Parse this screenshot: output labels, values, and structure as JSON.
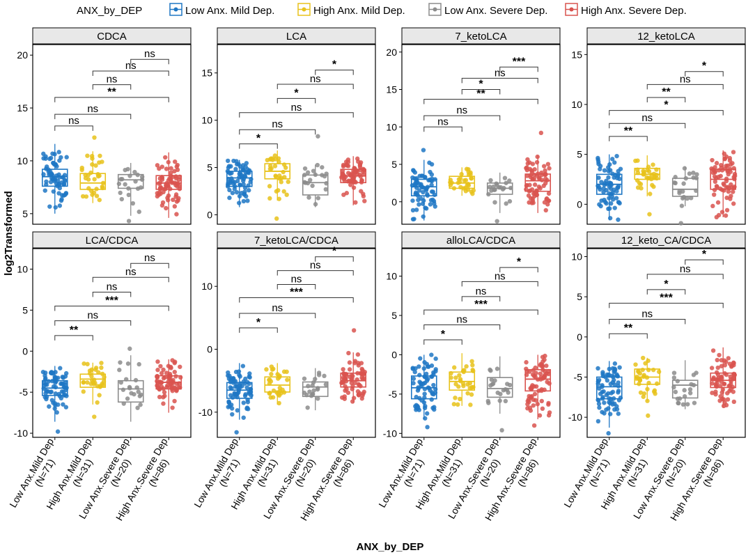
{
  "legend": {
    "title": "ANX_by_DEP",
    "entries": [
      {
        "label": "Low Anx. Mild Dep.",
        "color": "#1f77c4"
      },
      {
        "label": "High Anx. Mild Dep.",
        "color": "#e8c21a"
      },
      {
        "label": "Low Anx. Severe Dep.",
        "color": "#8c8c8c"
      },
      {
        "label": "High Anx. Severe Dep.",
        "color": "#d9534f"
      }
    ]
  },
  "axis": {
    "ylabel": "log2Transformed",
    "xlabel": "ANX_by_DEP",
    "tick_lines": [
      [
        "Low Anx.Mild Dep",
        "(N=71)"
      ],
      [
        "High Anx.Mild Dep",
        "(N=31)"
      ],
      [
        "Low Anx.Severe Dep",
        "(N=20)"
      ],
      [
        "High Anx.Severe Dep",
        "(N=86)"
      ]
    ]
  },
  "chart_data": [
    {
      "type": "box",
      "title": "CDCA",
      "ylim": [
        4,
        21
      ],
      "yticks": [
        5,
        10,
        15,
        20
      ],
      "categories": [
        "Low Anx.Mild Dep (N=71)",
        "High Anx.Mild Dep (N=31)",
        "Low Anx.Severe Dep (N=20)",
        "High Anx.Severe Dep (N=86)"
      ],
      "boxes": [
        {
          "min": 5.0,
          "q1": 7.6,
          "median": 8.5,
          "q3": 9.2,
          "max": 11.6
        },
        {
          "min": 6.0,
          "q1": 7.3,
          "median": 7.9,
          "q3": 8.8,
          "max": 10.9
        },
        {
          "min": 4.8,
          "q1": 7.4,
          "median": 8.2,
          "q3": 8.7,
          "max": 9.8
        },
        {
          "min": 4.6,
          "q1": 7.3,
          "median": 7.9,
          "q3": 8.6,
          "max": 10.8
        }
      ],
      "outliers": [
        [],
        [
          12.2
        ],
        [
          4.3
        ],
        []
      ],
      "comparisons": [
        {
          "from": 1,
          "to": 2,
          "y": 13.3,
          "label": "ns"
        },
        {
          "from": 1,
          "to": 3,
          "y": 14.4,
          "label": "ns"
        },
        {
          "from": 1,
          "to": 4,
          "y": 16.0,
          "label": "**"
        },
        {
          "from": 2,
          "to": 3,
          "y": 17.2,
          "label": "ns"
        },
        {
          "from": 2,
          "to": 4,
          "y": 18.5,
          "label": "ns"
        },
        {
          "from": 3,
          "to": 4,
          "y": 19.6,
          "label": "ns"
        }
      ]
    },
    {
      "type": "box",
      "title": "LCA",
      "ylim": [
        -1,
        18
      ],
      "yticks": [
        0,
        5,
        10,
        15
      ],
      "categories": [
        "Low Anx.Mild Dep (N=71)",
        "High Anx.Mild Dep (N=31)",
        "Low Anx.Severe Dep (N=20)",
        "High Anx.Severe Dep (N=86)"
      ],
      "boxes": [
        {
          "min": 0.8,
          "q1": 3.0,
          "median": 3.9,
          "q3": 4.6,
          "max": 5.8
        },
        {
          "min": 1.5,
          "q1": 3.8,
          "median": 4.6,
          "q3": 5.4,
          "max": 6.8
        },
        {
          "min": 0.8,
          "q1": 2.1,
          "median": 3.4,
          "q3": 4.2,
          "max": 5.3
        },
        {
          "min": 1.0,
          "q1": 3.4,
          "median": 4.1,
          "q3": 4.8,
          "max": 6.2
        }
      ],
      "outliers": [
        [],
        [
          -0.4
        ],
        [
          8.3
        ],
        []
      ],
      "comparisons": [
        {
          "from": 1,
          "to": 2,
          "y": 7.5,
          "label": "*"
        },
        {
          "from": 1,
          "to": 3,
          "y": 9.0,
          "label": "ns"
        },
        {
          "from": 1,
          "to": 4,
          "y": 10.8,
          "label": "ns"
        },
        {
          "from": 2,
          "to": 3,
          "y": 12.3,
          "label": "*"
        },
        {
          "from": 2,
          "to": 4,
          "y": 13.8,
          "label": "ns"
        },
        {
          "from": 3,
          "to": 4,
          "y": 15.3,
          "label": "*"
        }
      ]
    },
    {
      "type": "box",
      "title": "7_ketoLCA",
      "ylim": [
        -3,
        21
      ],
      "yticks": [
        0,
        5,
        10,
        15,
        20
      ],
      "categories": [
        "Low Anx.Mild Dep (N=71)",
        "High Anx.Mild Dep (N=31)",
        "Low Anx.Severe Dep (N=20)",
        "High Anx.Severe Dep (N=86)"
      ],
      "boxes": [
        {
          "min": -2.5,
          "q1": 0.8,
          "median": 2.0,
          "q3": 3.0,
          "max": 5.6
        },
        {
          "min": 0.8,
          "q1": 1.8,
          "median": 2.5,
          "q3": 3.4,
          "max": 4.6
        },
        {
          "min": -1.5,
          "q1": 1.0,
          "median": 1.8,
          "q3": 2.5,
          "max": 3.9
        },
        {
          "min": -1.5,
          "q1": 1.4,
          "median": 2.8,
          "q3": 3.7,
          "max": 6.2
        }
      ],
      "outliers": [
        [
          6.9
        ],
        [],
        [
          -2.6
        ],
        [
          9.2
        ]
      ],
      "comparisons": [
        {
          "from": 1,
          "to": 2,
          "y": 10.0,
          "label": "ns"
        },
        {
          "from": 1,
          "to": 3,
          "y": 11.5,
          "label": "ns"
        },
        {
          "from": 1,
          "to": 4,
          "y": 13.7,
          "label": "**"
        },
        {
          "from": 2,
          "to": 3,
          "y": 15.0,
          "label": "*"
        },
        {
          "from": 2,
          "to": 4,
          "y": 16.5,
          "label": "ns"
        },
        {
          "from": 3,
          "to": 4,
          "y": 18.0,
          "label": "***"
        }
      ]
    },
    {
      "type": "box",
      "title": "12_ketoLCA",
      "ylim": [
        -2,
        16
      ],
      "yticks": [
        0,
        5,
        10,
        15
      ],
      "categories": [
        "Low Anx.Mild Dep (N=71)",
        "High Anx.Mild Dep (N=31)",
        "Low Anx.Severe Dep (N=20)",
        "High Anx.Severe Dep (N=86)"
      ],
      "boxes": [
        {
          "min": -1.6,
          "q1": 1.0,
          "median": 2.0,
          "q3": 3.0,
          "max": 5.0
        },
        {
          "min": 0.8,
          "q1": 2.5,
          "median": 3.0,
          "q3": 3.6,
          "max": 4.9
        },
        {
          "min": -0.2,
          "q1": 0.8,
          "median": 1.5,
          "q3": 2.6,
          "max": 3.8
        },
        {
          "min": -1.3,
          "q1": 1.5,
          "median": 2.5,
          "q3": 3.5,
          "max": 5.4
        }
      ],
      "outliers": [
        [],
        [
          -1.0
        ],
        [
          -1.9
        ],
        []
      ],
      "comparisons": [
        {
          "from": 1,
          "to": 2,
          "y": 6.8,
          "label": "**"
        },
        {
          "from": 1,
          "to": 3,
          "y": 8.1,
          "label": "ns"
        },
        {
          "from": 1,
          "to": 4,
          "y": 9.4,
          "label": "*"
        },
        {
          "from": 2,
          "to": 3,
          "y": 10.7,
          "label": "**"
        },
        {
          "from": 2,
          "to": 4,
          "y": 12.0,
          "label": "ns"
        },
        {
          "from": 3,
          "to": 4,
          "y": 13.3,
          "label": "*"
        }
      ]
    },
    {
      "type": "box",
      "title": "LCA/CDCA",
      "ylim": [
        -10.5,
        12.5
      ],
      "yticks": [
        -10,
        -5,
        0,
        5,
        10
      ],
      "categories": [
        "Low Anx.Mild Dep (N=71)",
        "High Anx.Mild Dep (N=31)",
        "Low Anx.Severe Dep (N=20)",
        "High Anx.Severe Dep (N=86)"
      ],
      "boxes": [
        {
          "min": -8.6,
          "q1": -5.4,
          "median": -4.5,
          "q3": -3.6,
          "max": -1.8
        },
        {
          "min": -6.5,
          "q1": -4.4,
          "median": -3.4,
          "q3": -2.8,
          "max": -1.4
        },
        {
          "min": -8.6,
          "q1": -6.2,
          "median": -4.6,
          "q3": -3.6,
          "max": -0.5
        },
        {
          "min": -7.5,
          "q1": -4.6,
          "median": -3.8,
          "q3": -3.0,
          "max": -1.0
        }
      ],
      "outliers": [
        [
          -9.8
        ],
        [
          -8.0
        ],
        [
          0.3
        ],
        []
      ],
      "comparisons": [
        {
          "from": 1,
          "to": 2,
          "y": 1.9,
          "label": "**"
        },
        {
          "from": 1,
          "to": 3,
          "y": 3.7,
          "label": "ns"
        },
        {
          "from": 1,
          "to": 4,
          "y": 5.5,
          "label": "***"
        },
        {
          "from": 2,
          "to": 3,
          "y": 7.2,
          "label": "ns"
        },
        {
          "from": 2,
          "to": 4,
          "y": 9.0,
          "label": "ns"
        },
        {
          "from": 3,
          "to": 4,
          "y": 10.7,
          "label": "ns"
        }
      ]
    },
    {
      "type": "box",
      "title": "7_ketoLCA/CDCA",
      "ylim": [
        -14,
        16
      ],
      "yticks": [
        -10,
        0,
        10
      ],
      "categories": [
        "Low Anx.Mild Dep (N=71)",
        "High Anx.Mild Dep (N=31)",
        "Low Anx.Severe Dep (N=20)",
        "High Anx.Severe Dep (N=86)"
      ],
      "boxes": [
        {
          "min": -11.2,
          "q1": -7.8,
          "median": -6.5,
          "q3": -5.3,
          "max": -2.2
        },
        {
          "min": -8.8,
          "q1": -6.8,
          "median": -5.7,
          "q3": -4.4,
          "max": -2.2
        },
        {
          "min": -9.7,
          "q1": -7.5,
          "median": -6.0,
          "q3": -5.2,
          "max": -3.0
        },
        {
          "min": -8.5,
          "q1": -6.0,
          "median": -5.0,
          "q3": -3.8,
          "max": -0.5
        }
      ],
      "outliers": [
        [
          -13.2
        ],
        [],
        [],
        [
          3.0
        ]
      ],
      "comparisons": [
        {
          "from": 1,
          "to": 2,
          "y": 3.4,
          "label": "*"
        },
        {
          "from": 1,
          "to": 3,
          "y": 5.7,
          "label": "ns"
        },
        {
          "from": 1,
          "to": 4,
          "y": 8.2,
          "label": "***"
        },
        {
          "from": 2,
          "to": 3,
          "y": 10.3,
          "label": "ns"
        },
        {
          "from": 2,
          "to": 4,
          "y": 12.5,
          "label": "ns"
        },
        {
          "from": 3,
          "to": 4,
          "y": 14.7,
          "label": "*"
        }
      ]
    },
    {
      "type": "box",
      "title": "alloLCA/CDCA",
      "ylim": [
        -10.5,
        13.5
      ],
      "yticks": [
        -10,
        -5,
        0,
        5,
        10
      ],
      "categories": [
        "Low Anx.Mild Dep (N=71)",
        "High Anx.Mild Dep (N=31)",
        "Low Anx.Severe Dep (N=20)",
        "High Anx.Severe Dep (N=86)"
      ],
      "boxes": [
        {
          "min": -8.2,
          "q1": -5.6,
          "median": -4.2,
          "q3": -2.7,
          "max": 0.0
        },
        {
          "min": -6.5,
          "q1": -4.5,
          "median": -3.4,
          "q3": -2.2,
          "max": 0.2
        },
        {
          "min": -7.5,
          "q1": -5.4,
          "median": -4.3,
          "q3": -2.9,
          "max": -0.2
        },
        {
          "min": -8.2,
          "q1": -4.6,
          "median": -3.1,
          "q3": -1.9,
          "max": 0.0
        }
      ],
      "outliers": [
        [
          -9.2
        ],
        [],
        [
          -9.6
        ],
        [
          -9.0
        ]
      ],
      "comparisons": [
        {
          "from": 1,
          "to": 2,
          "y": 1.9,
          "label": "*"
        },
        {
          "from": 1,
          "to": 3,
          "y": 3.8,
          "label": "ns"
        },
        {
          "from": 1,
          "to": 4,
          "y": 5.7,
          "label": "***"
        },
        {
          "from": 2,
          "to": 3,
          "y": 7.4,
          "label": "ns"
        },
        {
          "from": 2,
          "to": 4,
          "y": 9.3,
          "label": "ns"
        },
        {
          "from": 3,
          "to": 4,
          "y": 11.1,
          "label": "*"
        }
      ]
    },
    {
      "type": "box",
      "title": "12_keto_CA/CDCA",
      "ylim": [
        -12.5,
        11
      ],
      "yticks": [
        -10,
        -5,
        0,
        5,
        10
      ],
      "categories": [
        "Low Anx.Mild Dep (N=71)",
        "High Anx.Mild Dep (N=31)",
        "Low Anx.Severe Dep (N=20)",
        "High Anx.Severe Dep (N=86)"
      ],
      "boxes": [
        {
          "min": -11.3,
          "q1": -7.7,
          "median": -6.2,
          "q3": -5.0,
          "max": -3.0
        },
        {
          "min": -8.0,
          "q1": -5.9,
          "median": -5.0,
          "q3": -4.0,
          "max": -2.6
        },
        {
          "min": -9.0,
          "q1": -7.6,
          "median": -6.0,
          "q3": -5.4,
          "max": -2.9
        },
        {
          "min": -8.8,
          "q1": -6.3,
          "median": -5.4,
          "q3": -4.5,
          "max": -1.3
        }
      ],
      "outliers": [
        [
          -12.0
        ],
        [
          -9.8
        ],
        [],
        []
      ],
      "comparisons": [
        {
          "from": 1,
          "to": 2,
          "y": 0.4,
          "label": "**"
        },
        {
          "from": 1,
          "to": 3,
          "y": 2.2,
          "label": "ns"
        },
        {
          "from": 1,
          "to": 4,
          "y": 4.2,
          "label": "***"
        },
        {
          "from": 2,
          "to": 3,
          "y": 5.9,
          "label": "*"
        },
        {
          "from": 2,
          "to": 4,
          "y": 7.8,
          "label": "ns"
        },
        {
          "from": 3,
          "to": 4,
          "y": 9.6,
          "label": "*"
        }
      ]
    }
  ]
}
